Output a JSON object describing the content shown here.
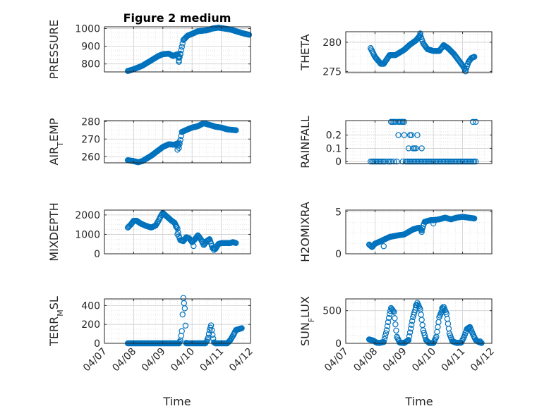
{
  "figure": {
    "title": "Figure 2 medium",
    "xlabel": "Time",
    "xtick_labels": [
      "04/07",
      "04/08",
      "04/09",
      "04/10",
      "04/11",
      "04/12"
    ],
    "marker_color": "#0072BD",
    "grid": true,
    "minor_grid": true
  },
  "chart_data": [
    {
      "type": "scatter",
      "ylabel": "PRESSURE",
      "ylim": [
        755,
        1010
      ],
      "yticks": [
        800,
        900,
        1000
      ],
      "x_range": [
        "04/07",
        "04/12"
      ],
      "knots": [
        [
          0.8,
          760
        ],
        [
          1.0,
          770
        ],
        [
          1.3,
          790
        ],
        [
          1.6,
          820
        ],
        [
          1.85,
          845
        ],
        [
          2.0,
          855
        ],
        [
          2.2,
          858
        ],
        [
          2.35,
          845
        ],
        [
          2.5,
          855
        ],
        [
          2.55,
          820
        ],
        [
          2.7,
          935
        ],
        [
          2.85,
          960
        ],
        [
          3.0,
          970
        ],
        [
          3.2,
          985
        ],
        [
          3.5,
          990
        ],
        [
          3.7,
          1000
        ],
        [
          3.9,
          1005
        ],
        [
          4.1,
          1000
        ],
        [
          4.3,
          995
        ],
        [
          4.5,
          985
        ],
        [
          4.7,
          975
        ],
        [
          4.95,
          965
        ]
      ],
      "extras": [
        [
          2.55,
          812
        ],
        [
          2.55,
          835
        ],
        [
          2.6,
          855
        ]
      ]
    },
    {
      "type": "scatter",
      "ylabel": "THETA",
      "ylim": [
        274.8,
        281.8
      ],
      "yticks": [
        275,
        280
      ],
      "x_range": [
        "04/07",
        "04/12"
      ],
      "knots": [
        [
          0.85,
          279
        ],
        [
          1.0,
          277.5
        ],
        [
          1.2,
          276.3
        ],
        [
          1.3,
          276.3
        ],
        [
          1.5,
          277.8
        ],
        [
          1.7,
          277.8
        ],
        [
          2.0,
          278.7
        ],
        [
          2.2,
          279.6
        ],
        [
          2.4,
          280.3
        ],
        [
          2.55,
          281.2
        ],
        [
          2.65,
          279.8
        ],
        [
          2.8,
          278.8
        ],
        [
          3.0,
          278.5
        ],
        [
          3.2,
          278.5
        ],
        [
          3.35,
          279.5
        ],
        [
          3.5,
          279.0
        ],
        [
          3.7,
          278.0
        ],
        [
          3.85,
          277.0
        ],
        [
          4.0,
          276.0
        ],
        [
          4.1,
          275.2
        ],
        [
          4.2,
          276.6
        ],
        [
          4.3,
          277.3
        ],
        [
          4.4,
          277.5
        ]
      ],
      "extras": [
        [
          2.55,
          281.5
        ],
        [
          3.4,
          279.3
        ],
        [
          4.1,
          275.0
        ]
      ]
    },
    {
      "type": "scatter",
      "ylabel": "AIR",
      "ylabel_sub": "T",
      "ylabel_rest": "EMP",
      "ylim": [
        256.5,
        280.5
      ],
      "yticks": [
        260,
        270,
        280
      ],
      "x_range": [
        "04/07",
        "04/12"
      ],
      "knots": [
        [
          0.8,
          258
        ],
        [
          1.0,
          257.5
        ],
        [
          1.15,
          256.8
        ],
        [
          1.3,
          257.5
        ],
        [
          1.6,
          260.5
        ],
        [
          1.8,
          263
        ],
        [
          2.0,
          265.5
        ],
        [
          2.2,
          267
        ],
        [
          2.4,
          266.8
        ],
        [
          2.5,
          267.5
        ],
        [
          2.55,
          265
        ],
        [
          2.65,
          274
        ],
        [
          2.85,
          275.5
        ],
        [
          3.0,
          276.5
        ],
        [
          3.2,
          277.3
        ],
        [
          3.4,
          279
        ],
        [
          3.6,
          278
        ],
        [
          3.8,
          277
        ],
        [
          4.0,
          276.5
        ],
        [
          4.2,
          275.5
        ],
        [
          4.5,
          275
        ]
      ],
      "extras": [
        [
          2.55,
          268
        ],
        [
          2.5,
          264
        ]
      ]
    },
    {
      "type": "scatter",
      "ylabel": "RAINFALL",
      "ylim": [
        -0.015,
        0.31
      ],
      "yticks": [
        0,
        0.1,
        0.2
      ],
      "x_range": [
        "04/07",
        "04/12"
      ],
      "points": [
        [
          0.85,
          0
        ],
        [
          0.9,
          0
        ],
        [
          0.95,
          0
        ],
        [
          1.0,
          0
        ],
        [
          1.05,
          0
        ],
        [
          1.1,
          0
        ],
        [
          1.15,
          0
        ],
        [
          1.2,
          0
        ],
        [
          1.25,
          0
        ],
        [
          1.3,
          0
        ],
        [
          1.35,
          0
        ],
        [
          1.45,
          0
        ],
        [
          1.5,
          0
        ],
        [
          1.55,
          0
        ],
        [
          1.65,
          0
        ],
        [
          1.75,
          0
        ],
        [
          1.95,
          0
        ],
        [
          2.05,
          0
        ],
        [
          2.1,
          0
        ],
        [
          2.15,
          0
        ],
        [
          2.2,
          0
        ],
        [
          2.25,
          0
        ],
        [
          2.3,
          0
        ],
        [
          2.35,
          0
        ],
        [
          2.4,
          0
        ],
        [
          2.45,
          0
        ],
        [
          2.5,
          0
        ],
        [
          2.55,
          0
        ],
        [
          2.6,
          0
        ],
        [
          2.65,
          0
        ],
        [
          2.7,
          0
        ],
        [
          2.75,
          0
        ],
        [
          2.8,
          0
        ],
        [
          2.85,
          0
        ],
        [
          2.9,
          0
        ],
        [
          2.95,
          0
        ],
        [
          3.0,
          0
        ],
        [
          3.05,
          0
        ],
        [
          3.1,
          0
        ],
        [
          3.15,
          0
        ],
        [
          3.2,
          0
        ],
        [
          3.25,
          0
        ],
        [
          3.3,
          0
        ],
        [
          3.35,
          0
        ],
        [
          3.4,
          0
        ],
        [
          3.45,
          0
        ],
        [
          3.5,
          0
        ],
        [
          3.55,
          0
        ],
        [
          3.6,
          0
        ],
        [
          3.65,
          0
        ],
        [
          3.7,
          0
        ],
        [
          3.75,
          0
        ],
        [
          3.8,
          0
        ],
        [
          3.85,
          0
        ],
        [
          3.9,
          0
        ],
        [
          3.95,
          0
        ],
        [
          4.0,
          0
        ],
        [
          4.05,
          0
        ],
        [
          4.1,
          0
        ],
        [
          4.15,
          0
        ],
        [
          4.2,
          0
        ],
        [
          4.25,
          0
        ],
        [
          4.3,
          0
        ],
        [
          4.35,
          0
        ],
        [
          4.4,
          0
        ],
        [
          4.45,
          0
        ],
        [
          1.55,
          0.3
        ],
        [
          1.6,
          0.3
        ],
        [
          1.65,
          0.3
        ],
        [
          1.7,
          0.3
        ],
        [
          1.8,
          0.3
        ],
        [
          1.85,
          0.3
        ],
        [
          1.9,
          0.3
        ],
        [
          1.95,
          0.3
        ],
        [
          2.0,
          0.3
        ],
        [
          1.8,
          0.2
        ],
        [
          2.0,
          0.2
        ],
        [
          2.2,
          0.2
        ],
        [
          2.25,
          0.2
        ],
        [
          2.45,
          0.2
        ],
        [
          2.15,
          0.1
        ],
        [
          2.3,
          0.1
        ],
        [
          2.35,
          0.1
        ],
        [
          2.4,
          0.1
        ],
        [
          2.6,
          0.1
        ],
        [
          4.35,
          0.3
        ],
        [
          4.45,
          0.3
        ]
      ]
    },
    {
      "type": "scatter",
      "ylabel": "MIXDEPTH",
      "ylim": [
        0,
        2250
      ],
      "yticks": [
        0,
        1000,
        2000
      ],
      "x_range": [
        "04/07",
        "04/12"
      ],
      "knots": [
        [
          0.8,
          1350
        ],
        [
          0.9,
          1500
        ],
        [
          1.0,
          1700
        ],
        [
          1.1,
          1700
        ],
        [
          1.25,
          1550
        ],
        [
          1.4,
          1450
        ],
        [
          1.6,
          1350
        ],
        [
          1.75,
          1450
        ],
        [
          1.85,
          1700
        ],
        [
          1.95,
          2000
        ],
        [
          2.0,
          2100
        ],
        [
          2.15,
          1900
        ],
        [
          2.3,
          1700
        ],
        [
          2.4,
          1600
        ],
        [
          2.5,
          1300
        ],
        [
          2.55,
          900
        ],
        [
          2.6,
          700
        ],
        [
          2.7,
          650
        ],
        [
          2.8,
          850
        ],
        [
          2.9,
          800
        ],
        [
          3.0,
          600
        ],
        [
          3.1,
          750
        ],
        [
          3.2,
          950
        ],
        [
          3.3,
          750
        ],
        [
          3.4,
          450
        ],
        [
          3.5,
          650
        ],
        [
          3.6,
          750
        ],
        [
          3.7,
          300
        ],
        [
          3.8,
          250
        ],
        [
          3.9,
          500
        ],
        [
          4.0,
          550
        ],
        [
          4.1,
          550
        ],
        [
          4.2,
          550
        ],
        [
          4.3,
          550
        ],
        [
          4.4,
          600
        ],
        [
          4.5,
          550
        ]
      ],
      "extras": [
        [
          2.45,
          1400
        ],
        [
          2.5,
          1000
        ],
        [
          3.05,
          400
        ],
        [
          3.35,
          650
        ],
        [
          3.75,
          200
        ],
        [
          3.85,
          400
        ]
      ]
    },
    {
      "type": "scatter",
      "ylabel": "H2OMIXRA",
      "ylim": [
        0,
        5.2
      ],
      "yticks": [
        0,
        5
      ],
      "x_range": [
        "04/07",
        "04/12"
      ],
      "knots": [
        [
          0.8,
          1.1
        ],
        [
          0.9,
          0.8
        ],
        [
          1.0,
          1.2
        ],
        [
          1.2,
          1.5
        ],
        [
          1.5,
          2.0
        ],
        [
          1.8,
          2.2
        ],
        [
          2.0,
          2.3
        ],
        [
          2.3,
          2.9
        ],
        [
          2.5,
          3.1
        ],
        [
          2.6,
          2.8
        ],
        [
          2.7,
          3.8
        ],
        [
          2.9,
          4.0
        ],
        [
          3.0,
          4.0
        ],
        [
          3.2,
          4.1
        ],
        [
          3.4,
          4.3
        ],
        [
          3.6,
          4.1
        ],
        [
          3.8,
          4.3
        ],
        [
          4.0,
          4.4
        ],
        [
          4.2,
          4.3
        ],
        [
          4.4,
          4.2
        ]
      ],
      "extras": [
        [
          1.3,
          0.9
        ],
        [
          2.6,
          2.6
        ],
        [
          3.0,
          3.6
        ]
      ]
    },
    {
      "type": "scatter",
      "ylabel": "TERR",
      "ylabel_sub": "M",
      "ylabel_rest": "SL",
      "ylim": [
        0,
        470
      ],
      "yticks": [
        0,
        200,
        400
      ],
      "x_range": [
        "04/07",
        "04/12"
      ],
      "flat_ranges": [
        [
          0.8,
          2.55
        ],
        [
          2.8,
          3.45
        ],
        [
          3.8,
          4.2
        ]
      ],
      "knots_segments": [
        [
          [
            2.55,
            0
          ],
          [
            2.6,
            30
          ],
          [
            2.65,
            130
          ],
          [
            2.7,
            480
          ],
          [
            2.75,
            370
          ],
          [
            2.8,
            5
          ]
        ],
        [
          [
            3.45,
            0
          ],
          [
            3.5,
            20
          ],
          [
            3.55,
            60
          ],
          [
            3.6,
            140
          ],
          [
            3.65,
            190
          ],
          [
            3.7,
            90
          ],
          [
            3.75,
            10
          ],
          [
            3.8,
            0
          ]
        ],
        [
          [
            4.2,
            0
          ],
          [
            4.3,
            30
          ],
          [
            4.4,
            80
          ],
          [
            4.5,
            140
          ],
          [
            4.6,
            150
          ],
          [
            4.7,
            160
          ]
        ]
      ]
    },
    {
      "type": "scatter",
      "ylabel": "SUN",
      "ylabel_sub": "F",
      "ylabel_rest": "LUX",
      "ylim": [
        0,
        680
      ],
      "yticks": [
        0,
        500
      ],
      "x_range": [
        "04/07",
        "04/12"
      ],
      "knots": [
        [
          0.8,
          60
        ],
        [
          0.95,
          40
        ],
        [
          1.05,
          10
        ],
        [
          1.15,
          5
        ],
        [
          1.3,
          20
        ],
        [
          1.4,
          200
        ],
        [
          1.5,
          450
        ],
        [
          1.55,
          540
        ],
        [
          1.65,
          480
        ],
        [
          1.75,
          100
        ],
        [
          1.85,
          10
        ],
        [
          2.0,
          5
        ],
        [
          2.15,
          50
        ],
        [
          2.3,
          400
        ],
        [
          2.45,
          620
        ],
        [
          2.55,
          520
        ],
        [
          2.65,
          200
        ],
        [
          2.75,
          50
        ],
        [
          2.85,
          5
        ],
        [
          3.0,
          5
        ],
        [
          3.1,
          100
        ],
        [
          3.2,
          400
        ],
        [
          3.35,
          560
        ],
        [
          3.45,
          450
        ],
        [
          3.55,
          150
        ],
        [
          3.65,
          30
        ],
        [
          3.8,
          5
        ],
        [
          3.95,
          10
        ],
        [
          4.05,
          100
        ],
        [
          4.15,
          220
        ],
        [
          4.25,
          250
        ],
        [
          4.35,
          140
        ],
        [
          4.45,
          50
        ],
        [
          4.55,
          20
        ],
        [
          4.65,
          5
        ]
      ],
      "extras": [
        [
          2.4,
          580
        ],
        [
          3.3,
          540
        ],
        [
          4.6,
          30
        ]
      ]
    }
  ]
}
